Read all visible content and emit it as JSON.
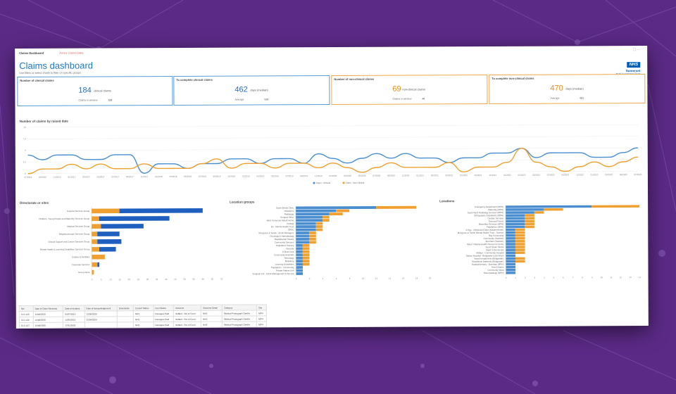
{
  "window": {
    "tabs": [
      {
        "label": "Claims Dashboard",
        "active": true
      },
      {
        "label": "Annex Claims Data",
        "active": false
      }
    ]
  },
  "header": {
    "title": "Claims dashboard",
    "subtitle": "Use filters or select charts to filter on specific groups",
    "logo": {
      "mark": "NHS",
      "org": "Somerset",
      "sub": "NHS Foundation Trust"
    }
  },
  "kpis": [
    {
      "title": "Number of clinical claims",
      "value": "184",
      "unit": "clinical claims",
      "foot_label": "Claims in window",
      "foot_value": "108",
      "color": "#2f6fb3"
    },
    {
      "title": "To complete clinical claims",
      "value": "462",
      "unit": "days (median)",
      "foot_label": "Average",
      "foot_value": "519",
      "color": "#2f6fb3"
    },
    {
      "title": "Number of non-clinical claims",
      "value": "69",
      "unit": "non-clinical claims",
      "foot_label": "Claims in window",
      "foot_value": "46",
      "color": "#e8912a"
    },
    {
      "title": "To complete non-clinical claims",
      "value": "470",
      "unit": "days (median)",
      "foot_label": "Average",
      "foot_value": "601",
      "color": "#e8912a"
    }
  ],
  "line_section": {
    "title": "Number of claims by raised date"
  },
  "bar_sections": [
    {
      "title": "Directorate or sites"
    },
    {
      "title": "Location groups"
    },
    {
      "title": "Locations"
    }
  ],
  "chart_data": [
    {
      "type": "line",
      "title": "Number of claims by raised date",
      "ylim": [
        0,
        10
      ],
      "yticks": [
        0,
        2.5,
        5,
        7.5,
        10
      ],
      "x": [
        "07/2016",
        "09/2016",
        "11/2016",
        "01/2017",
        "03/2017",
        "05/2017",
        "07/2017",
        "09/2017",
        "11/2017",
        "01/2018",
        "03/2018",
        "05/2018",
        "07/2018",
        "09/2018",
        "11/2018",
        "01/2019",
        "03/2019",
        "05/2019",
        "07/2019",
        "09/2019",
        "11/2019",
        "01/2020",
        "03/2020",
        "05/2020",
        "07/2020",
        "09/2020",
        "11/2020",
        "01/2021",
        "03/2021",
        "05/2021",
        "07/2021",
        "09/2021",
        "11/2021",
        "01/2022",
        "03/2022",
        "05/2022",
        "07/2022",
        "09/2022",
        "11/2022",
        "01/2023",
        "03/2023",
        "05/2023",
        "07/2023"
      ],
      "series": [
        {
          "name": "Claim - Clinical",
          "color": "#4a8ed0",
          "values": [
            4,
            3,
            4,
            4,
            3,
            3,
            4,
            4,
            0,
            2,
            2,
            1,
            2,
            2,
            3,
            3,
            2,
            3,
            3,
            2,
            4,
            3,
            2,
            3,
            4,
            3,
            4,
            3,
            3,
            2,
            3,
            3,
            4,
            4,
            5,
            3,
            4,
            4,
            4,
            3,
            3,
            4,
            5
          ]
        },
        {
          "name": "Claim - Non Clinical",
          "color": "#f0a030",
          "values": [
            0,
            1,
            1,
            2,
            1,
            2,
            1,
            1,
            2,
            1,
            1,
            1,
            2,
            3,
            1,
            2,
            2,
            1,
            2,
            2,
            1,
            2,
            1,
            0,
            1,
            2,
            1,
            1,
            1,
            2,
            0,
            1,
            1,
            2,
            5,
            2,
            1,
            0,
            1,
            2,
            1,
            2,
            3
          ]
        }
      ],
      "legend": "bottom"
    },
    {
      "type": "bar",
      "stacked": true,
      "orientation": "horizontal",
      "title": "Directorate or sites",
      "categories": [
        "Surgical Services Group",
        "Children, Young People and Maternity Services Group",
        "Medical Services Group",
        "Neighbourhoods Services Group",
        "Clinical Support and Cancer Services Group",
        "Mental Health & Learning Disabilities Services Group",
        "Estates & Facilities",
        "Corporate Services",
        "Group None"
      ],
      "series": [
        {
          "name": "Claim - Non Clinical",
          "color": "#f0a030",
          "values": [
            15,
            4,
            5,
            3,
            3,
            4,
            7,
            3,
            1
          ]
        },
        {
          "name": "Claim - Clinical",
          "color": "#1f5fbf",
          "values": [
            45,
            38,
            23,
            12,
            13,
            9,
            0,
            1,
            0
          ]
        }
      ],
      "xlim": [
        0,
        70
      ],
      "xticks": [
        0,
        5,
        10,
        15,
        20,
        25,
        30,
        35,
        40,
        45,
        50,
        55,
        60,
        65,
        70
      ]
    },
    {
      "type": "bar",
      "stacked": true,
      "orientation": "horizontal",
      "title": "Location groups",
      "categories": [
        "South Bristol Clinic",
        "Obstetrics",
        "Radiology",
        "Surgical Clinic",
        "West Somerset Abbott Home",
        "Urology",
        "Bri - Mental Health Trust",
        "ORAL",
        "Musgrove & Tomlin - Acute Managers",
        "Oncology & Haematology",
        "Maxillofacial Theatre",
        "Community Services",
        "Outpatient Therapy",
        "Vascular",
        "Critical Care",
        "Community Hospitals",
        "Neurology",
        "Midwifery",
        "Learning Disabilities",
        "Paediatrics - Community",
        "Private Patient Unit",
        "Surgical Unit - Acute Management & Service"
      ],
      "series": [
        {
          "name": "Claim - Clinical",
          "color": "#4a8ed0",
          "values": [
            12,
            6,
            5,
            4,
            4,
            3,
            3,
            3,
            2,
            2,
            2,
            2,
            1,
            1,
            1,
            1,
            1,
            1,
            1,
            1,
            1,
            1
          ]
        },
        {
          "name": "Claim - Non Clinical",
          "color": "#f0a030",
          "values": [
            6,
            2,
            2,
            1,
            1,
            1,
            1,
            1,
            1,
            1,
            1,
            1,
            1,
            1,
            1,
            1,
            1,
            1,
            1,
            0,
            0,
            0
          ]
        }
      ],
      "xlim": [
        0,
        20
      ],
      "xticks": [
        0,
        2,
        4,
        6,
        8,
        10,
        12,
        14,
        16,
        18,
        20
      ]
    },
    {
      "type": "bar",
      "stacked": true,
      "orientation": "horizontal",
      "title": "Locations",
      "categories": [
        "Emergency Department (MPH)",
        "Maternity (MPH)",
        "South West Radiology Services (MPH)",
        "Orthopaedic Outpatients (MPH)",
        "Cardiac Services",
        "Durwood House",
        "Macmillan Services (MPH)",
        "Paediatrics (MPH)",
        "X-Ray - Ultrasound Dept (Kidderminster)",
        "Musgrove & Tomlin Mental Health Trust - Taunton",
        "Bay Community",
        "Community (Taunton)",
        "Burnham (Taunton)",
        "Ward 4 Mental Health Resource Centre",
        "South Stoke Stroke",
        "Ward 3 (Somerset)",
        "Williton - Community Hospital",
        "Station Hospital - Bridgwater & Burnham",
        "Ward Kendall Amb (Bridgwater)",
        "Woodlands Maternity (Bridgwater)",
        "Radiopharmacy - Burnham (MPH)",
        "Yeovil District",
        "Community Ward",
        "Rheumatology (MPH)"
      ],
      "series": [
        {
          "name": "Claim - Clinical",
          "color": "#4a8ed0",
          "values": [
            9,
            4,
            3,
            2,
            2,
            2,
            2,
            2,
            1,
            1,
            1,
            1,
            1,
            1,
            1,
            1,
            1,
            1,
            1,
            1,
            1,
            1,
            1,
            1
          ]
        },
        {
          "name": "Claim - Non Clinical",
          "color": "#f0a030",
          "values": [
            5,
            2,
            1,
            1,
            1,
            1,
            1,
            1,
            1,
            1,
            1,
            1,
            1,
            1,
            1,
            1,
            1,
            0,
            1,
            1,
            0,
            0,
            0,
            0
          ]
        }
      ],
      "xlim": [
        0,
        14
      ],
      "xticks": [
        0,
        1,
        2,
        3,
        4,
        5,
        6,
        7,
        8,
        9,
        10,
        11,
        12,
        13,
        14
      ]
    }
  ],
  "table": {
    "headers": [
      "Ref",
      "Date of Claim Received",
      "Date of Incident",
      "Date of Acknowledgement",
      "Directorate",
      "Current Status",
      "Cost Status",
      "Outcome",
      "Outcome Detail",
      "Category",
      "Site"
    ],
    "rows": [
      [
        "CLC-125",
        "12/06/2020",
        "04/07/2019",
        "12/06/2020",
        "",
        "NHS",
        "Damages Paid",
        "Settled - Out of Court",
        "NHS",
        "Medical Photograph Deaths",
        "MPH"
      ],
      [
        "CLC-126",
        "12/06/2020",
        "14/05/2019",
        "22/06/2020",
        "",
        "NHS",
        "Damages Paid",
        "Settled - Out of Court",
        "NHS",
        "Medical Photograph Deaths",
        "MPH"
      ],
      [
        "CLC-127",
        "15/06/2020",
        "17/01/2020",
        "",
        "",
        "NHS",
        "Damages Paid",
        "Settled - Out of Court",
        "NHS",
        "Medical Photograph Deaths",
        "MPH"
      ]
    ]
  }
}
